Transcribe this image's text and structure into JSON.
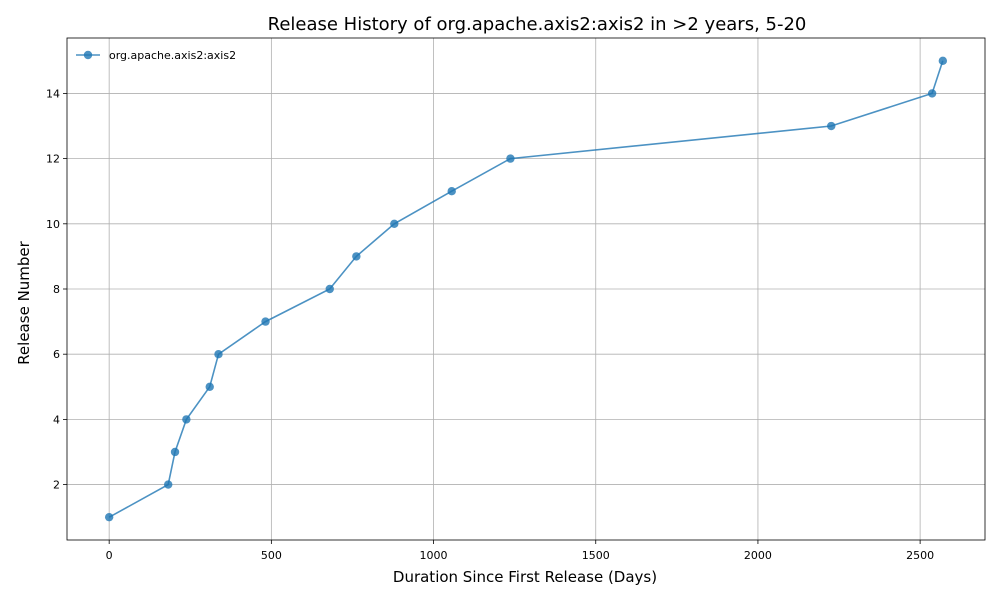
{
  "chart_data": {
    "type": "line",
    "title": "Release History of org.apache.axis2:axis2 in >2 years, 5-20",
    "xlabel": "Duration Since First Release (Days)",
    "ylabel": "Release Number",
    "xlim": [
      -130,
      2700
    ],
    "ylim": [
      0.3,
      15.7
    ],
    "xticks": [
      0,
      500,
      1000,
      1500,
      2000,
      2500
    ],
    "yticks": [
      2,
      4,
      6,
      8,
      10,
      12,
      14
    ],
    "grid": true,
    "legend_position": "top-left",
    "series": [
      {
        "name": "org.apache.axis2:axis2",
        "color": "#1f77b4",
        "marker": "circle",
        "x": [
          0,
          182,
          203,
          238,
          310,
          337,
          482,
          680,
          762,
          879,
          1056,
          1237,
          2226,
          2537,
          2570
        ],
        "y": [
          1,
          2,
          3,
          4,
          5,
          6,
          7,
          8,
          9,
          10,
          11,
          12,
          13,
          14,
          15
        ]
      }
    ]
  }
}
